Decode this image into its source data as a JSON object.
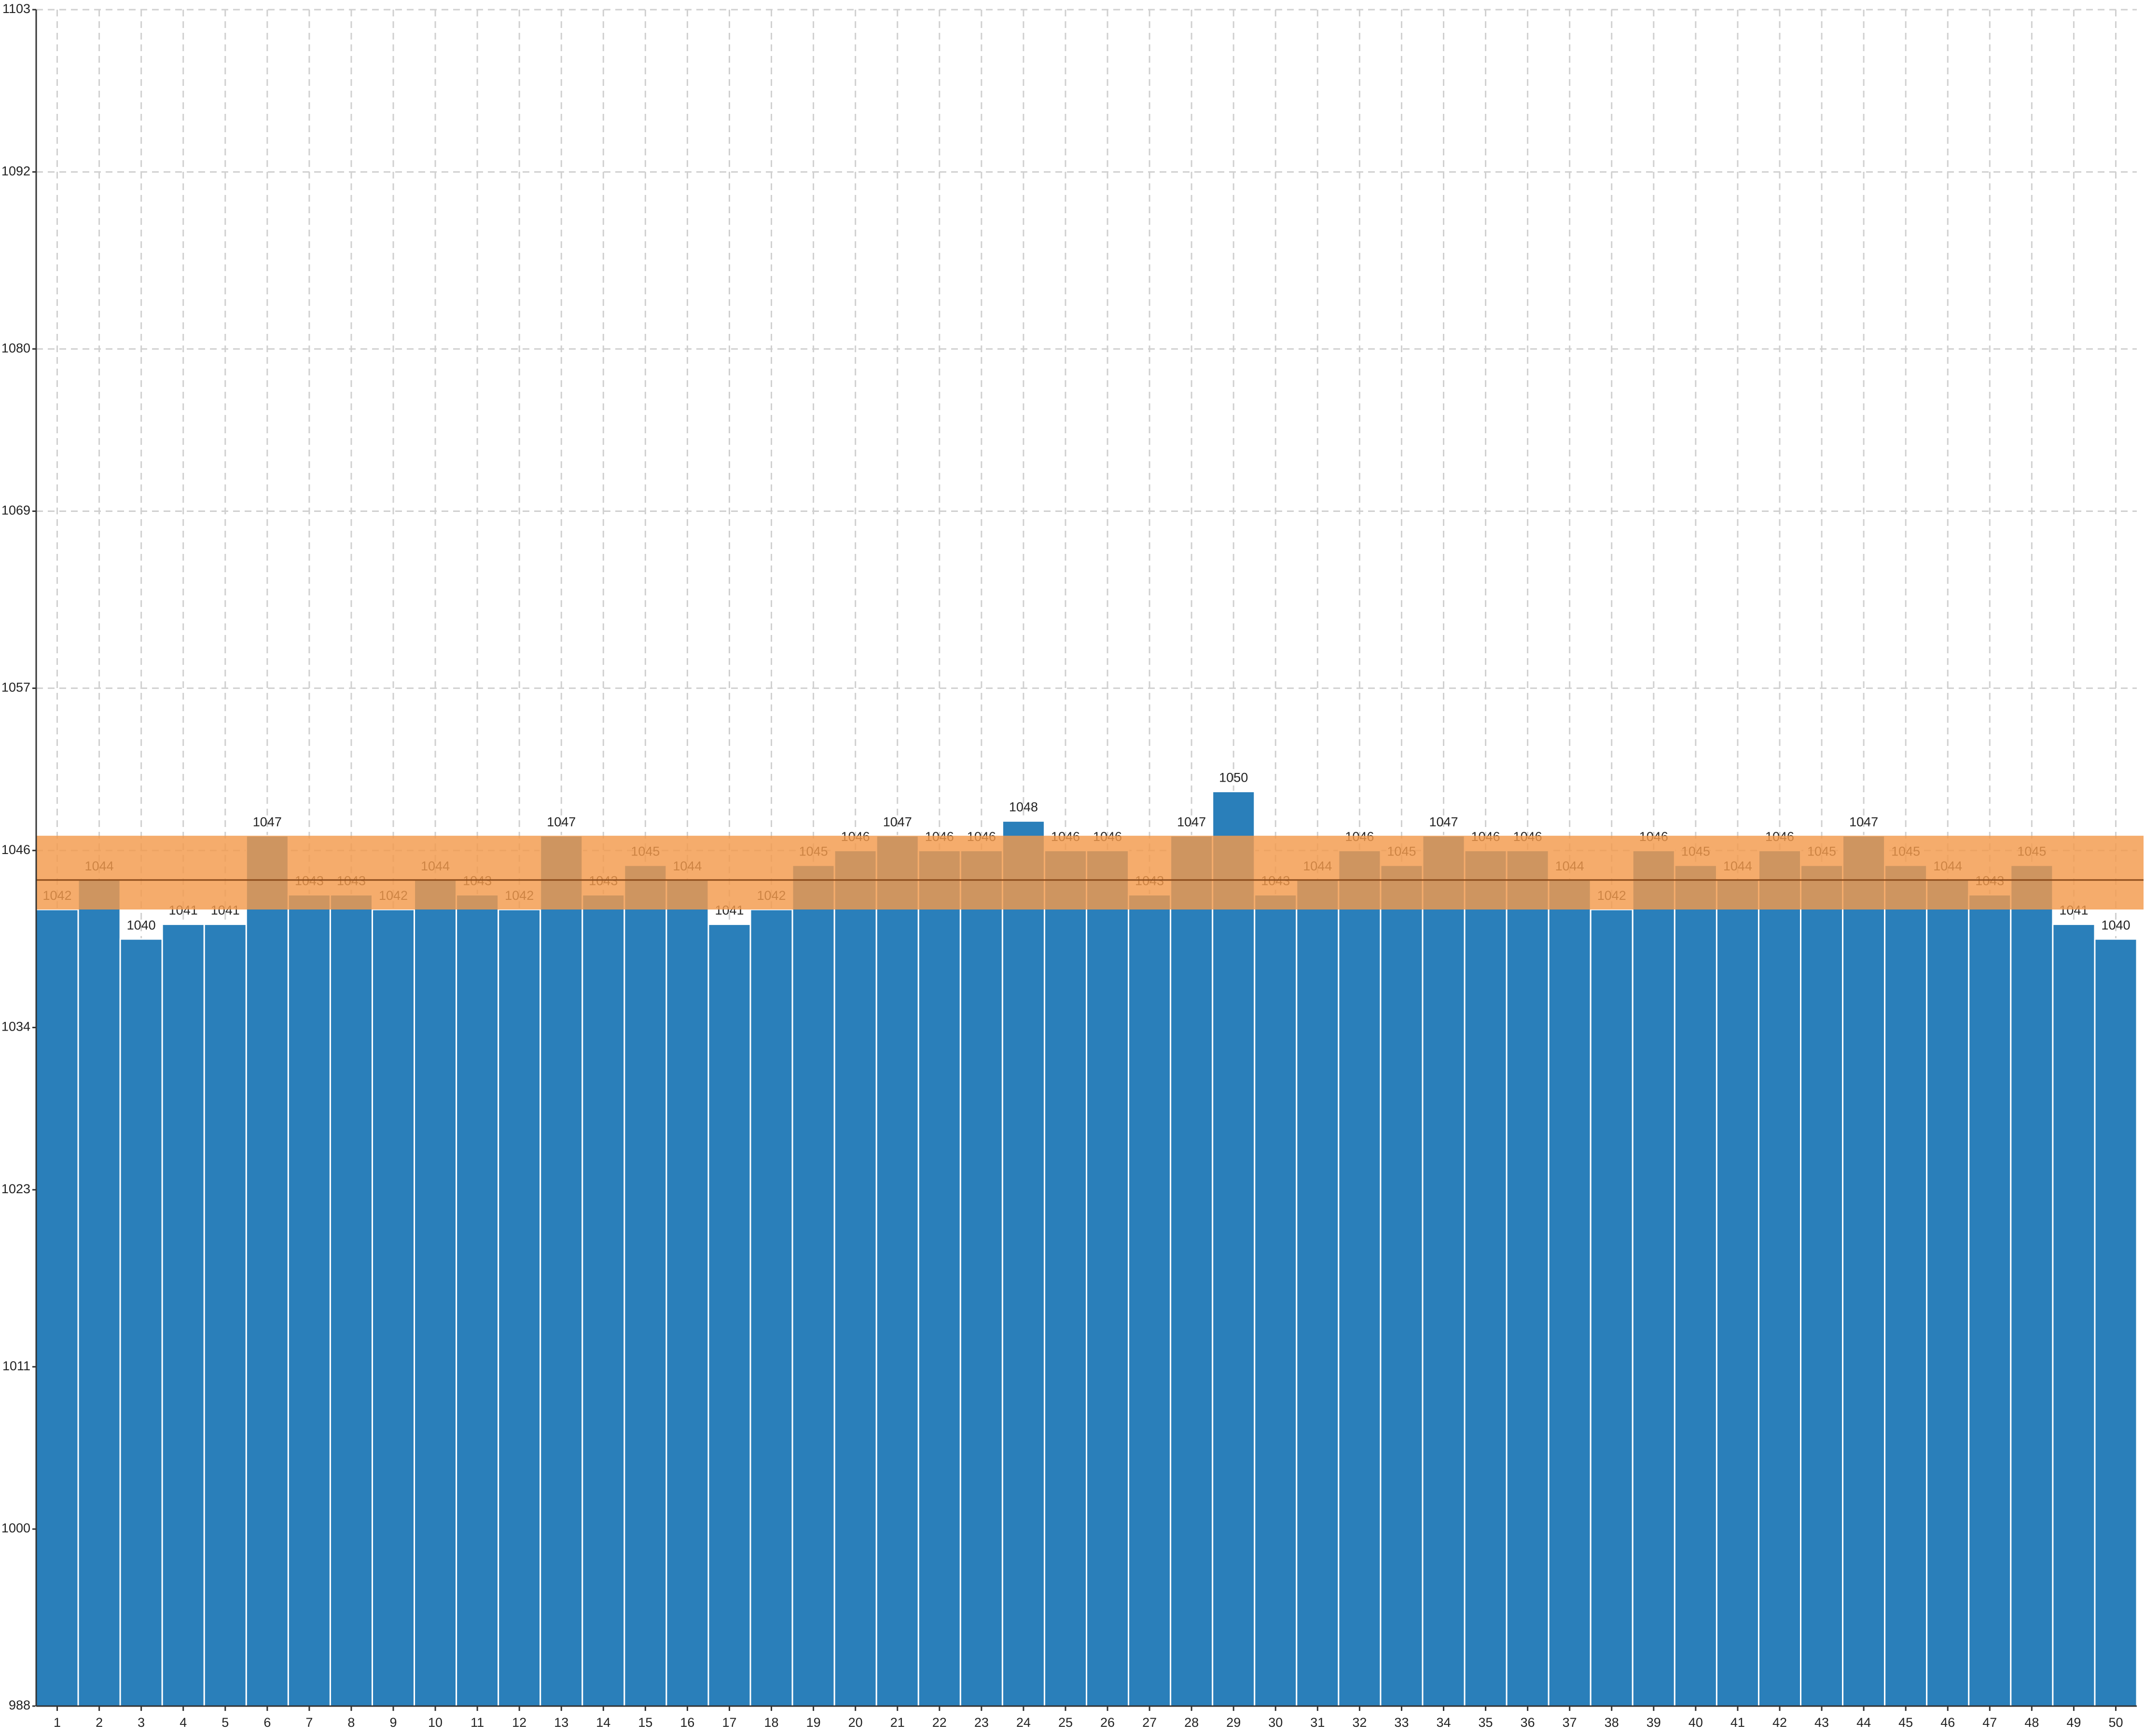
{
  "chart_data": {
    "type": "bar",
    "categories": [
      "1",
      "2",
      "3",
      "4",
      "5",
      "6",
      "7",
      "8",
      "9",
      "10",
      "11",
      "12",
      "13",
      "14",
      "15",
      "16",
      "17",
      "18",
      "19",
      "20",
      "21",
      "22",
      "23",
      "24",
      "25",
      "26",
      "27",
      "28",
      "29",
      "30",
      "31",
      "32",
      "33",
      "34",
      "35",
      "36",
      "37",
      "38",
      "39",
      "40",
      "41",
      "42",
      "43",
      "44",
      "45",
      "46",
      "47",
      "48",
      "49",
      "50"
    ],
    "values": [
      1042,
      1044,
      1040,
      1041,
      1041,
      1047,
      1043,
      1043,
      1042,
      1044,
      1043,
      1042,
      1047,
      1043,
      1045,
      1044,
      1041,
      1042,
      1045,
      1046,
      1047,
      1046,
      1046,
      1048,
      1046,
      1046,
      1043,
      1047,
      1050,
      1043,
      1044,
      1046,
      1045,
      1047,
      1046,
      1046,
      1044,
      1042,
      1046,
      1045,
      1044,
      1046,
      1045,
      1047,
      1045,
      1044,
      1043,
      1045,
      1041,
      1040
    ],
    "color": "#2a7fba",
    "ylim": [
      988,
      1103
    ],
    "yticks": [
      988,
      1000,
      1011,
      1023,
      1034,
      1046,
      1057,
      1069,
      1080,
      1092,
      1103
    ],
    "grid": true,
    "band": [
      1042,
      1047
    ],
    "band_color": "#f39a4c",
    "mean_line": 1044,
    "mean_line_color": "#8a4a1a"
  }
}
